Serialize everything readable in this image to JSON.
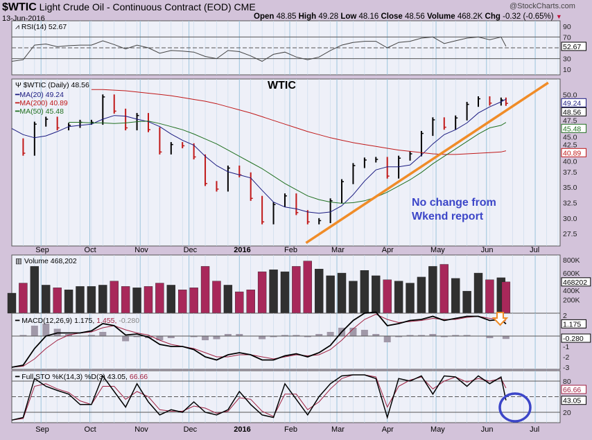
{
  "header": {
    "symbol": "$WTIC",
    "name": "Light Crude Oil - Continuous Contract (EOD) CME",
    "date": "13-Jun-2016",
    "brand": "@StockCharts.com",
    "quote": [
      {
        "label": "Open",
        "value": "48.85"
      },
      {
        "label": "High",
        "value": "49.28"
      },
      {
        "label": "Low",
        "value": "48.16"
      },
      {
        "label": "Close",
        "value": "48.56"
      },
      {
        "label": "Volume",
        "value": "468.2K"
      },
      {
        "label": "Chg",
        "value": "-0.32 (-0.65%)"
      }
    ],
    "down_color": "#c0143c"
  },
  "chart_data": {
    "type": "line",
    "dates": [
      "2015-08-14",
      "2015-08-21",
      "2015-08-28",
      "2015-09-04",
      "2015-09-11",
      "2015-09-18",
      "2015-09-25",
      "2015-10-02",
      "2015-10-09",
      "2015-10-16",
      "2015-10-23",
      "2015-10-30",
      "2015-11-06",
      "2015-11-13",
      "2015-11-20",
      "2015-11-27",
      "2015-12-04",
      "2015-12-11",
      "2015-12-18",
      "2015-12-25",
      "2016-01-01",
      "2016-01-08",
      "2016-01-15",
      "2016-01-22",
      "2016-01-29",
      "2016-02-05",
      "2016-02-12",
      "2016-02-19",
      "2016-02-26",
      "2016-03-04",
      "2016-03-11",
      "2016-03-18",
      "2016-03-25",
      "2016-04-01",
      "2016-04-08",
      "2016-04-15",
      "2016-04-22",
      "2016-04-29",
      "2016-05-06",
      "2016-05-13",
      "2016-05-20",
      "2016-05-27",
      "2016-06-03",
      "2016-06-10",
      "2016-06-13"
    ],
    "x_ticks": [
      {
        "label": "Sep",
        "date": "2015-09-01"
      },
      {
        "label": "Oct",
        "date": "2015-10-01"
      },
      {
        "label": "Nov",
        "date": "2015-11-01"
      },
      {
        "label": "Dec",
        "date": "2015-12-01"
      },
      {
        "label": "2016",
        "date": "2016-01-01",
        "bold": true
      },
      {
        "label": "Feb",
        "date": "2016-02-01"
      },
      {
        "label": "Mar",
        "date": "2016-03-01"
      },
      {
        "label": "Apr",
        "date": "2016-04-01"
      },
      {
        "label": "May",
        "date": "2016-05-01"
      },
      {
        "label": "Jun",
        "date": "2016-06-01"
      },
      {
        "label": "Jul",
        "date": "2016-07-01"
      }
    ],
    "rsi": {
      "legend": "RSI(14) 52.67",
      "last": "52.67",
      "ylim": [
        0,
        100
      ],
      "ticks": [
        "90",
        "70",
        "30",
        "10"
      ],
      "values": [
        25,
        28,
        55,
        57,
        52,
        54,
        55,
        55,
        63,
        56,
        48,
        55,
        50,
        40,
        45,
        44,
        42,
        34,
        30,
        45,
        43,
        35,
        25,
        38,
        42,
        33,
        28,
        33,
        45,
        55,
        60,
        62,
        62,
        50,
        60,
        62,
        68,
        70,
        58,
        63,
        68,
        70,
        65,
        70,
        52.67
      ]
    },
    "price": {
      "title": "WTIC",
      "legend": "$WTIC (Daily) 48.56",
      "last": "48.56",
      "ylim": [
        25.5,
        52.5
      ],
      "ticks": [
        "50.0",
        "47.5",
        "45.0",
        "42.5",
        "40.0",
        "37.5",
        "35.0",
        "32.5",
        "30.0",
        "27.5"
      ],
      "close": [
        42.5,
        40.5,
        45.2,
        46.0,
        44.6,
        45.0,
        45.5,
        45.5,
        49.6,
        47.3,
        44.6,
        46.6,
        44.3,
        40.7,
        41.9,
        41.7,
        39.9,
        35.6,
        34.7,
        38.1,
        37.0,
        33.2,
        29.4,
        32.2,
        33.6,
        30.9,
        29.4,
        29.6,
        32.8,
        35.9,
        38.5,
        39.4,
        39.5,
        36.8,
        39.7,
        40.4,
        43.7,
        45.9,
        44.7,
        46.2,
        48.4,
        49.3,
        48.6,
        49.1,
        48.56
      ],
      "ma": [
        {
          "name": "MA(20) 49.24",
          "last": "49.24",
          "color": "#1a1a80",
          "values": [
            44.5,
            43.5,
            43.0,
            43.3,
            44.0,
            44.8,
            45.0,
            45.2,
            46.0,
            46.6,
            46.5,
            46.0,
            45.6,
            44.8,
            43.6,
            42.6,
            41.8,
            40.0,
            38.5,
            37.5,
            37.0,
            36.5,
            34.5,
            32.6,
            31.8,
            31.5,
            31.0,
            30.8,
            31.0,
            32.0,
            33.8,
            36.0,
            37.8,
            38.3,
            38.3,
            38.6,
            40.2,
            42.0,
            43.5,
            44.3,
            45.4,
            47.0,
            48.0,
            48.8,
            49.24
          ]
        },
        {
          "name": "MA(200) 40.89",
          "last": "40.89",
          "color": "#c01818",
          "values": [
            null,
            null,
            null,
            null,
            null,
            null,
            null,
            50.8,
            50.8,
            50.7,
            50.6,
            50.4,
            50.2,
            50.0,
            49.8,
            49.5,
            49.2,
            48.9,
            48.5,
            48.0,
            47.5,
            47.0,
            46.4,
            45.8,
            45.2,
            44.6,
            44.0,
            43.5,
            43.0,
            42.6,
            42.2,
            41.9,
            41.6,
            41.3,
            41.0,
            40.8,
            40.6,
            40.4,
            40.3,
            40.3,
            40.4,
            40.5,
            40.6,
            40.7,
            40.89
          ]
        },
        {
          "name": "MA(50) 45.48",
          "last": "45.48",
          "color": "#207020",
          "values": [
            null,
            null,
            null,
            null,
            null,
            45.5,
            45.5,
            45.4,
            45.4,
            45.3,
            45.4,
            45.6,
            45.7,
            45.3,
            44.8,
            44.3,
            43.6,
            42.8,
            42.0,
            41.0,
            40.0,
            39.0,
            38.0,
            36.8,
            35.6,
            34.6,
            33.6,
            33.0,
            32.6,
            32.4,
            32.5,
            32.8,
            33.4,
            34.2,
            35.2,
            36.2,
            37.4,
            38.8,
            40.0,
            41.2,
            42.4,
            43.6,
            44.6,
            45.0,
            45.48
          ]
        }
      ],
      "trendline": {
        "color": "#f08c28",
        "start": {
          "date": "2016-02-11",
          "value": 26.0
        },
        "end": {
          "date": "2016-07-09",
          "value": 51.9
        }
      },
      "annotation": "No change from\nWkend report",
      "annotation_color": "#3c46c8"
    },
    "volume": {
      "legend": "Volume 468,202",
      "last": "468202",
      "unit": "K",
      "ylim": [
        0,
        870
      ],
      "ticks": [
        {
          "label": "800K",
          "v": 800
        },
        {
          "label": "600K",
          "v": 600
        },
        {
          "label": "400K",
          "v": 400
        },
        {
          "label": "200K",
          "v": 200
        }
      ],
      "values": [
        300,
        450,
        700,
        420,
        380,
        350,
        400,
        400,
        420,
        480,
        400,
        380,
        400,
        450,
        420,
        350,
        380,
        700,
        480,
        420,
        320,
        350,
        620,
        650,
        620,
        700,
        780,
        660,
        560,
        600,
        480,
        640,
        560,
        500,
        480,
        450,
        540,
        700,
        730,
        520,
        330,
        600,
        500,
        530,
        468
      ]
    },
    "macd": {
      "legend_prefix": "MACD(12,26,9)",
      "legend_macd": "1.175,",
      "legend_signal": "1.455,",
      "legend_hist": "-0.280",
      "last_macd": "1.175",
      "last_hist": "-0.280",
      "ylim": [
        -3.2,
        2.2
      ],
      "ticks": [
        "2",
        "-1",
        "-2",
        "-3"
      ],
      "macd": [
        -3.0,
        -2.8,
        -1.2,
        0.0,
        0.3,
        0.3,
        0.3,
        0.5,
        1.2,
        1.0,
        0.1,
        0.2,
        -0.1,
        -0.8,
        -1.0,
        -1.0,
        -1.3,
        -2.0,
        -2.3,
        -1.8,
        -1.6,
        -1.8,
        -2.3,
        -2.3,
        -1.9,
        -1.7,
        -2.0,
        -1.6,
        -0.9,
        0.4,
        1.5,
        2.2,
        2.3,
        1.0,
        1.2,
        1.5,
        1.6,
        1.9,
        1.5,
        1.7,
        1.9,
        1.9,
        1.5,
        1.6,
        1.175
      ],
      "signal": [
        -3.0,
        -2.9,
        -2.2,
        -1.2,
        -0.4,
        0.1,
        0.3,
        0.4,
        0.8,
        1.0,
        0.6,
        0.3,
        0.1,
        -0.4,
        -0.8,
        -1.0,
        -1.2,
        -1.6,
        -2.0,
        -2.0,
        -1.8,
        -1.8,
        -2.0,
        -2.2,
        -2.0,
        -1.8,
        -1.9,
        -1.8,
        -1.3,
        -0.4,
        0.7,
        1.6,
        2.1,
        1.6,
        1.3,
        1.4,
        1.5,
        1.7,
        1.6,
        1.6,
        1.8,
        1.9,
        1.7,
        1.6,
        1.455
      ]
    },
    "sto": {
      "legend_prefix": "Full STO %K(14,3) %D(3)",
      "legend_k": "43.05,",
      "legend_d": "66.66",
      "last_k": "43.05",
      "last_d": "66.66",
      "ylim": [
        0,
        100
      ],
      "ticks": [
        "80",
        "20"
      ],
      "k": [
        5,
        10,
        85,
        70,
        62,
        55,
        35,
        35,
        90,
        60,
        30,
        75,
        40,
        15,
        25,
        20,
        40,
        20,
        15,
        25,
        60,
        35,
        15,
        10,
        75,
        45,
        15,
        50,
        75,
        90,
        92,
        92,
        85,
        10,
        85,
        80,
        90,
        55,
        90,
        88,
        70,
        90,
        75,
        88,
        43.05
      ],
      "d": [
        5,
        8,
        70,
        75,
        65,
        58,
        42,
        35,
        70,
        70,
        45,
        60,
        50,
        25,
        22,
        22,
        32,
        28,
        18,
        22,
        48,
        45,
        22,
        12,
        55,
        55,
        25,
        40,
        65,
        85,
        92,
        92,
        88,
        30,
        70,
        82,
        88,
        65,
        80,
        88,
        78,
        85,
        80,
        85,
        66.66
      ]
    },
    "grid": true
  }
}
